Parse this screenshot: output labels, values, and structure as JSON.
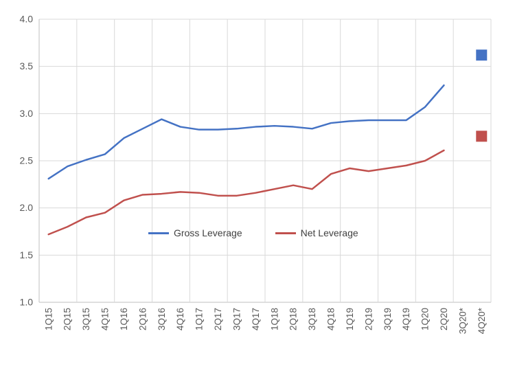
{
  "chart_data": {
    "type": "line",
    "title": "",
    "xlabel": "",
    "ylabel": "",
    "ylim": [
      1.0,
      4.0
    ],
    "ytick_step": 0.5,
    "ytick_labels": [
      "1.0",
      "1.5",
      "2.0",
      "2.5",
      "3.0",
      "3.5",
      "4.0"
    ],
    "grid": true,
    "legend_position": "inside-lower-center",
    "categories": [
      "1Q15",
      "2Q15",
      "3Q15",
      "4Q15",
      "1Q16",
      "2Q16",
      "3Q16",
      "4Q16",
      "1Q17",
      "2Q17",
      "3Q17",
      "4Q17",
      "1Q18",
      "2Q18",
      "3Q18",
      "4Q18",
      "1Q19",
      "2Q19",
      "3Q19",
      "4Q19",
      "1Q20",
      "2Q20",
      "3Q20*",
      "4Q20*"
    ],
    "series": [
      {
        "name": "Gross Leverage",
        "color": "#4472C4",
        "values": [
          2.31,
          2.44,
          2.51,
          2.57,
          2.74,
          2.84,
          2.94,
          2.86,
          2.83,
          2.83,
          2.84,
          2.86,
          2.87,
          2.86,
          2.84,
          2.9,
          2.92,
          2.93,
          2.93,
          2.93,
          3.07,
          3.3,
          null,
          null
        ]
      },
      {
        "name": "Net Leverage",
        "color": "#C0504D",
        "values": [
          1.72,
          1.8,
          1.9,
          1.95,
          2.08,
          2.14,
          2.15,
          2.17,
          2.16,
          2.13,
          2.13,
          2.16,
          2.2,
          2.24,
          2.2,
          2.36,
          2.42,
          2.39,
          2.42,
          2.45,
          2.5,
          2.61,
          null,
          null
        ]
      }
    ],
    "projected_markers": [
      {
        "series": "Gross Leverage",
        "category": "4Q20*",
        "value": 3.62,
        "shape": "square",
        "color": "#4472C4"
      },
      {
        "series": "Net Leverage",
        "category": "4Q20*",
        "value": 2.76,
        "shape": "square",
        "color": "#C0504D"
      }
    ]
  },
  "legend": {
    "items": [
      {
        "label": "Gross Leverage",
        "color": "#4472C4"
      },
      {
        "label": "Net Leverage",
        "color": "#C0504D"
      }
    ]
  },
  "style_colors": {
    "gridline": "#D9D9D9",
    "axis_line": "#BFBFBF",
    "tick_label": "#595959"
  }
}
